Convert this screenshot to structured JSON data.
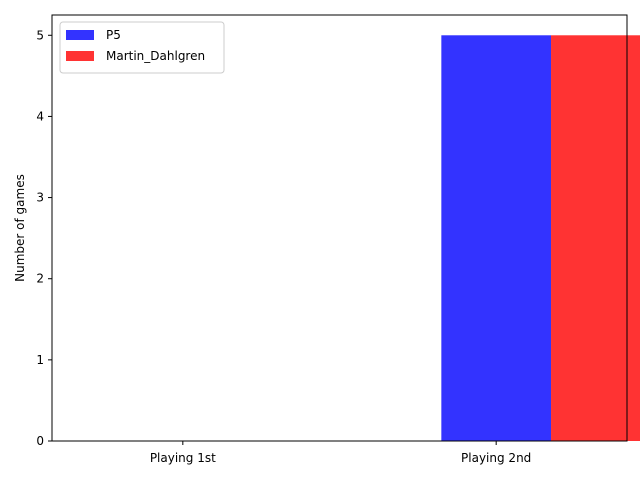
{
  "chart_data": {
    "type": "bar",
    "title": "",
    "xlabel": "",
    "ylabel": "Number of games",
    "categories": [
      "Playing 1st",
      "Playing 2nd"
    ],
    "series": [
      {
        "name": "P5",
        "values": [
          0,
          5
        ],
        "color": "#3333ff"
      },
      {
        "name": "Martin_Dahlgren",
        "values": [
          0,
          5
        ],
        "color": "#ff3333"
      }
    ],
    "ylim": [
      0,
      5.25
    ],
    "yticks": [
      "0",
      "1",
      "2",
      "3",
      "4",
      "5"
    ],
    "grid": false,
    "legend_position": "top-left"
  }
}
